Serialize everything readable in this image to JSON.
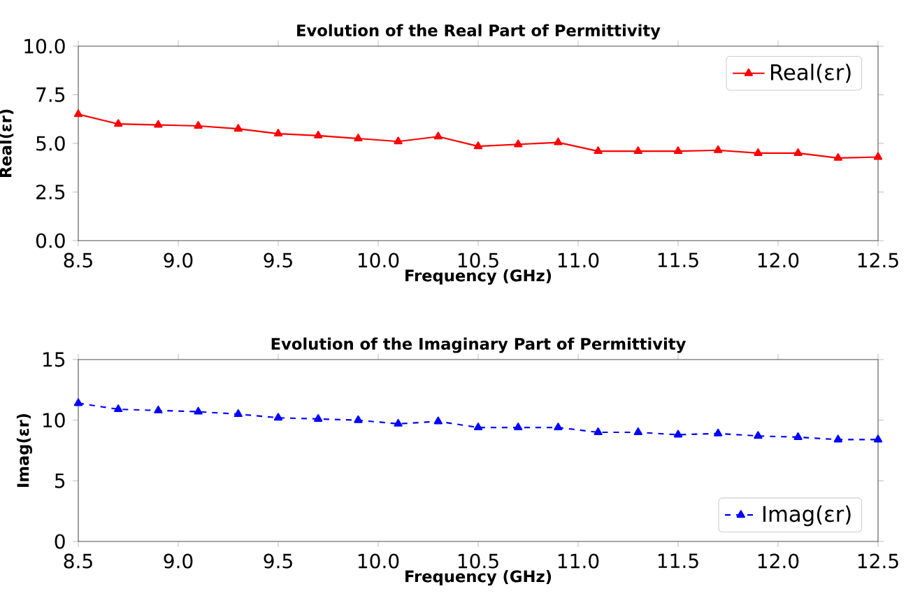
{
  "chart_data": [
    {
      "type": "line",
      "title": "Evolution of the Real Part of Permittivity",
      "xlabel": "Frequency (GHz)",
      "ylabel": "Real(εr)",
      "x": [
        8.5,
        8.7,
        8.9,
        9.1,
        9.3,
        9.5,
        9.7,
        9.9,
        10.1,
        10.3,
        10.5,
        10.7,
        10.9,
        11.1,
        11.3,
        11.5,
        11.7,
        11.9,
        12.1,
        12.3,
        12.5
      ],
      "series": [
        {
          "name": "Real(εr)",
          "color": "#ff0000",
          "line_style": "solid",
          "marker": "triangle",
          "values": [
            6.5,
            6.0,
            5.95,
            5.9,
            5.75,
            5.5,
            5.4,
            5.25,
            5.1,
            5.35,
            4.85,
            4.95,
            5.05,
            4.6,
            4.6,
            4.6,
            4.65,
            4.5,
            4.5,
            4.25,
            4.3
          ]
        }
      ],
      "xlim": [
        8.5,
        12.5
      ],
      "ylim": [
        0,
        10
      ],
      "xticks": [
        8.5,
        {
          "value": 9,
          "label": "9.0"
        },
        9.5,
        {
          "value": 10,
          "label": "10.0"
        },
        10.5,
        {
          "value": 11,
          "label": "11.0"
        },
        11.5,
        {
          "value": 12,
          "label": "12.0"
        },
        12.5
      ],
      "yticks": [
        {
          "value": 0,
          "label": "0.0"
        },
        2.5,
        {
          "value": 5,
          "label": "5.0"
        },
        7.5,
        {
          "value": 10,
          "label": "10.0"
        }
      ],
      "legend": "top right"
    },
    {
      "type": "line",
      "title": "Evolution of the Imaginary Part of Permittivity",
      "xlabel": "Frequency (GHz)",
      "ylabel": "Imag(εr)",
      "x": [
        8.5,
        8.7,
        8.9,
        9.1,
        9.3,
        9.5,
        9.7,
        9.9,
        10.1,
        10.3,
        10.5,
        10.7,
        10.9,
        11.1,
        11.3,
        11.5,
        11.7,
        11.9,
        12.1,
        12.3,
        12.5
      ],
      "series": [
        {
          "name": "Imag(εr)",
          "color": "#0000ff",
          "line_style": "dashed",
          "marker": "triangle",
          "values": [
            11.4,
            10.9,
            10.8,
            10.7,
            10.5,
            10.2,
            10.1,
            10.0,
            9.7,
            9.9,
            9.4,
            9.4,
            9.4,
            9.0,
            9.0,
            8.8,
            8.9,
            8.7,
            8.6,
            8.4,
            8.4
          ]
        }
      ],
      "xlim": [
        8.5,
        12.5
      ],
      "ylim": [
        0,
        15
      ],
      "xticks": [
        8.5,
        {
          "value": 9,
          "label": "9.0"
        },
        9.5,
        {
          "value": 10,
          "label": "10.0"
        },
        10.5,
        {
          "value": 11,
          "label": "11.0"
        },
        11.5,
        {
          "value": 12,
          "label": "12.0"
        },
        12.5
      ],
      "yticks": [
        0,
        5,
        10,
        15
      ],
      "legend": "bottom right"
    }
  ]
}
